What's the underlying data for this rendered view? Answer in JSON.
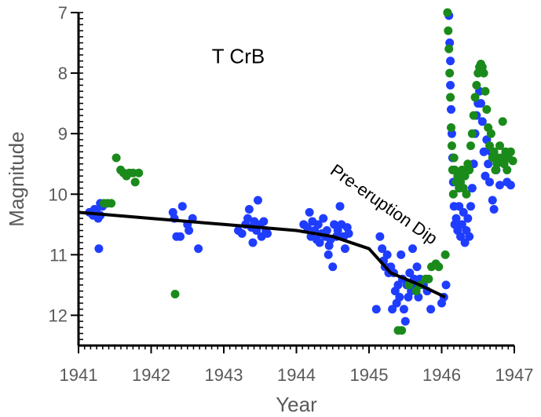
{
  "chart_data": {
    "type": "scatter",
    "title": "",
    "xlabel": "Year",
    "ylabel": "Magnitude",
    "xlim": [
      1941,
      1947
    ],
    "ylim": [
      7,
      12.5
    ],
    "y_inverted": true,
    "x_ticks": [
      "1941",
      "1942",
      "1943",
      "1944",
      "1945",
      "1946",
      "1947"
    ],
    "y_ticks": [
      "7",
      "8",
      "9",
      "10",
      "11",
      "12"
    ],
    "grid": false,
    "legend": "none",
    "annotations": [
      {
        "text": "T CrB",
        "x": 1943.2,
        "y": 7.72
      },
      {
        "text": "Pre-eruption Dip",
        "x": 1944.45,
        "y": 9.65,
        "angle": 35
      }
    ],
    "colors": {
      "blue": "#1f3dff",
      "green": "#1a8a1a",
      "line": "#000000",
      "axis": "#000000",
      "text": "#595959"
    },
    "series": [
      {
        "color": "blue",
        "points": [
          [
            1941.15,
            10.3
          ],
          [
            1941.2,
            10.35
          ],
          [
            1941.22,
            10.25
          ],
          [
            1941.25,
            10.3
          ],
          [
            1941.27,
            10.4
          ],
          [
            1941.28,
            10.9
          ],
          [
            1941.3,
            10.15
          ],
          [
            1941.3,
            10.35
          ],
          [
            1941.33,
            10.2
          ],
          [
            1942.3,
            10.3
          ],
          [
            1942.32,
            10.4
          ],
          [
            1942.35,
            10.7
          ],
          [
            1942.4,
            10.7
          ],
          [
            1942.43,
            10.2
          ],
          [
            1942.5,
            10.5
          ],
          [
            1942.52,
            10.6
          ],
          [
            1942.57,
            10.4
          ],
          [
            1942.65,
            10.9
          ],
          [
            1943.2,
            10.6
          ],
          [
            1943.25,
            10.65
          ],
          [
            1943.3,
            10.5
          ],
          [
            1943.33,
            10.4
          ],
          [
            1943.35,
            10.25
          ],
          [
            1943.38,
            10.55
          ],
          [
            1943.4,
            10.8
          ],
          [
            1943.42,
            10.45
          ],
          [
            1943.45,
            10.6
          ],
          [
            1943.47,
            10.1
          ],
          [
            1943.5,
            10.5
          ],
          [
            1943.52,
            10.7
          ],
          [
            1943.55,
            10.45
          ],
          [
            1943.58,
            10.6
          ],
          [
            1943.6,
            10.65
          ],
          [
            1944.1,
            10.5
          ],
          [
            1944.15,
            10.55
          ],
          [
            1944.18,
            10.3
          ],
          [
            1944.2,
            10.7
          ],
          [
            1944.22,
            10.45
          ],
          [
            1944.25,
            10.6
          ],
          [
            1944.28,
            10.75
          ],
          [
            1944.3,
            10.5
          ],
          [
            1944.32,
            10.8
          ],
          [
            1944.35,
            10.65
          ],
          [
            1944.37,
            10.4
          ],
          [
            1944.4,
            10.7
          ],
          [
            1944.42,
            10.6
          ],
          [
            1944.44,
            11.0
          ],
          [
            1944.45,
            10.85
          ],
          [
            1944.47,
            10.75
          ],
          [
            1944.5,
            11.2
          ],
          [
            1944.52,
            10.5
          ],
          [
            1944.55,
            10.7
          ],
          [
            1944.57,
            10.6
          ],
          [
            1944.6,
            10.2
          ],
          [
            1944.62,
            10.5
          ],
          [
            1944.65,
            10.7
          ],
          [
            1944.67,
            10.9
          ],
          [
            1944.7,
            10.55
          ],
          [
            1944.72,
            10.65
          ],
          [
            1945.1,
            11.9
          ],
          [
            1945.15,
            10.7
          ],
          [
            1945.18,
            10.9
          ],
          [
            1945.2,
            11.1
          ],
          [
            1945.22,
            11.2
          ],
          [
            1945.25,
            11.0
          ],
          [
            1945.27,
            11.3
          ],
          [
            1945.3,
            11.2
          ],
          [
            1945.32,
            11.9
          ],
          [
            1945.34,
            11.3
          ],
          [
            1945.36,
            11.6
          ],
          [
            1945.38,
            11.8
          ],
          [
            1945.4,
            11.5
          ],
          [
            1945.42,
            11.7
          ],
          [
            1945.44,
            11.0
          ],
          [
            1945.46,
            11.4
          ],
          [
            1945.48,
            11.9
          ],
          [
            1945.5,
            12.1
          ],
          [
            1945.52,
            11.5
          ],
          [
            1945.54,
            11.7
          ],
          [
            1945.56,
            11.3
          ],
          [
            1945.58,
            11.6
          ],
          [
            1945.6,
            10.9
          ],
          [
            1945.62,
            11.4
          ],
          [
            1945.64,
            11.5
          ],
          [
            1945.66,
            11.2
          ],
          [
            1945.68,
            11.7
          ],
          [
            1945.7,
            11.4
          ],
          [
            1945.75,
            11.5
          ],
          [
            1945.8,
            11.6
          ],
          [
            1945.85,
            11.9
          ],
          [
            1946.0,
            11.8
          ],
          [
            1946.03,
            11.7
          ],
          [
            1946.06,
            11.5
          ],
          [
            1946.1,
            7.05
          ],
          [
            1946.11,
            7.5
          ],
          [
            1946.12,
            7.8
          ],
          [
            1946.12,
            8.2
          ],
          [
            1946.13,
            8.6
          ],
          [
            1946.14,
            9.0
          ],
          [
            1946.15,
            9.4
          ],
          [
            1946.16,
            9.8
          ],
          [
            1946.17,
            10.2
          ],
          [
            1946.18,
            10.5
          ],
          [
            1946.2,
            10.4
          ],
          [
            1946.22,
            10.6
          ],
          [
            1946.24,
            10.2
          ],
          [
            1946.26,
            10.7
          ],
          [
            1946.28,
            10.5
          ],
          [
            1946.3,
            10.3
          ],
          [
            1946.32,
            10.8
          ],
          [
            1946.34,
            10.6
          ],
          [
            1946.36,
            10.4
          ],
          [
            1946.38,
            10.7
          ],
          [
            1946.4,
            10.2
          ],
          [
            1946.42,
            9.9
          ],
          [
            1946.44,
            9.5
          ],
          [
            1946.46,
            9.0
          ],
          [
            1946.48,
            8.7
          ],
          [
            1946.5,
            8.5
          ],
          [
            1946.52,
            8.3
          ],
          [
            1946.54,
            8.5
          ],
          [
            1946.56,
            8.8
          ],
          [
            1946.58,
            9.3
          ],
          [
            1946.6,
            9.7
          ],
          [
            1946.62,
            9.1
          ],
          [
            1946.64,
            9.5
          ],
          [
            1946.66,
            9.8
          ],
          [
            1946.68,
            9.3
          ],
          [
            1946.7,
            10.1
          ],
          [
            1946.72,
            10.25
          ],
          [
            1946.75,
            9.6
          ],
          [
            1946.8,
            9.85
          ],
          [
            1946.9,
            9.8
          ],
          [
            1946.95,
            9.85
          ]
        ]
      },
      {
        "color": "green",
        "points": [
          [
            1941.35,
            10.15
          ],
          [
            1941.4,
            10.15
          ],
          [
            1941.45,
            10.15
          ],
          [
            1941.52,
            9.4
          ],
          [
            1941.58,
            9.6
          ],
          [
            1941.62,
            9.65
          ],
          [
            1941.66,
            9.7
          ],
          [
            1941.7,
            9.65
          ],
          [
            1941.75,
            9.65
          ],
          [
            1941.78,
            9.8
          ],
          [
            1941.83,
            9.65
          ],
          [
            1942.33,
            11.65
          ],
          [
            1945.4,
            12.25
          ],
          [
            1945.45,
            12.25
          ],
          [
            1945.55,
            11.5
          ],
          [
            1945.65,
            11.6
          ],
          [
            1945.7,
            11.5
          ],
          [
            1945.78,
            11.4
          ],
          [
            1945.82,
            11.4
          ],
          [
            1945.86,
            11.2
          ],
          [
            1945.92,
            11.15
          ],
          [
            1945.96,
            11.2
          ],
          [
            1946.05,
            11.0
          ],
          [
            1946.08,
            7.0
          ],
          [
            1946.09,
            7.3
          ],
          [
            1946.1,
            7.6
          ],
          [
            1946.11,
            8.0
          ],
          [
            1946.12,
            8.4
          ],
          [
            1946.13,
            8.9
          ],
          [
            1946.14,
            9.2
          ],
          [
            1946.15,
            9.6
          ],
          [
            1946.16,
            10.0
          ],
          [
            1946.17,
            9.4
          ],
          [
            1946.18,
            9.6
          ],
          [
            1946.2,
            9.8
          ],
          [
            1946.22,
            9.7
          ],
          [
            1946.24,
            9.9
          ],
          [
            1946.26,
            9.8
          ],
          [
            1946.28,
            9.6
          ],
          [
            1946.3,
            9.9
          ],
          [
            1946.32,
            9.7
          ],
          [
            1946.34,
            10.0
          ],
          [
            1946.36,
            9.5
          ],
          [
            1946.38,
            9.6
          ],
          [
            1946.4,
            9.2
          ],
          [
            1946.42,
            9.0
          ],
          [
            1946.44,
            8.7
          ],
          [
            1946.46,
            8.4
          ],
          [
            1946.48,
            8.2
          ],
          [
            1946.5,
            8.0
          ],
          [
            1946.52,
            7.9
          ],
          [
            1946.54,
            7.85
          ],
          [
            1946.56,
            7.9
          ],
          [
            1946.58,
            8.0
          ],
          [
            1946.6,
            8.3
          ],
          [
            1946.62,
            8.6
          ],
          [
            1946.64,
            8.9
          ],
          [
            1946.66,
            9.2
          ],
          [
            1946.68,
            9.0
          ],
          [
            1946.7,
            9.4
          ],
          [
            1946.72,
            9.3
          ],
          [
            1946.74,
            9.6
          ],
          [
            1946.76,
            9.5
          ],
          [
            1946.78,
            9.4
          ],
          [
            1946.8,
            9.2
          ],
          [
            1946.82,
            9.4
          ],
          [
            1946.84,
            8.8
          ],
          [
            1946.86,
            9.5
          ],
          [
            1946.88,
            9.3
          ],
          [
            1946.9,
            9.6
          ],
          [
            1946.92,
            9.4
          ],
          [
            1946.95,
            9.3
          ],
          [
            1946.98,
            9.45
          ]
        ]
      }
    ],
    "line": [
      [
        1941.0,
        10.3
      ],
      [
        1942.0,
        10.4
      ],
      [
        1943.0,
        10.5
      ],
      [
        1944.0,
        10.6
      ],
      [
        1944.5,
        10.7
      ],
      [
        1945.0,
        10.9
      ],
      [
        1945.3,
        11.3
      ],
      [
        1945.7,
        11.5
      ],
      [
        1946.05,
        11.7
      ]
    ]
  }
}
